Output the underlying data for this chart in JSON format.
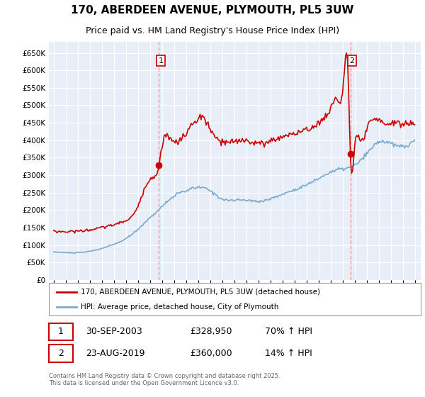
{
  "title": "170, ABERDEEN AVENUE, PLYMOUTH, PL5 3UW",
  "subtitle": "Price paid vs. HM Land Registry's House Price Index (HPI)",
  "title_fontsize": 11,
  "subtitle_fontsize": 9,
  "background_color": "#ffffff",
  "plot_bg_color": "#e8eef8",
  "grid_color": "#ffffff",
  "ylim": [
    0,
    682000
  ],
  "yticks": [
    0,
    50000,
    100000,
    150000,
    200000,
    250000,
    300000,
    350000,
    400000,
    450000,
    500000,
    550000,
    600000,
    650000
  ],
  "red_line_color": "#cc0000",
  "blue_line_color": "#7aaad0",
  "dashed_line_color": "#ff8888",
  "marker1_year": 2003.75,
  "marker1_value": 328950,
  "marker2_year": 2019.65,
  "marker2_value": 360000,
  "sale1_label": "1",
  "sale1_date": "30-SEP-2003",
  "sale1_price": "£328,950",
  "sale1_hpi": "70% ↑ HPI",
  "sale2_label": "2",
  "sale2_date": "23-AUG-2019",
  "sale2_price": "£360,000",
  "sale2_hpi": "14% ↑ HPI",
  "legend_line1": "170, ABERDEEN AVENUE, PLYMOUTH, PL5 3UW (detached house)",
  "legend_line2": "HPI: Average price, detached house, City of Plymouth",
  "footer": "Contains HM Land Registry data © Crown copyright and database right 2025.\nThis data is licensed under the Open Government Licence v3.0."
}
